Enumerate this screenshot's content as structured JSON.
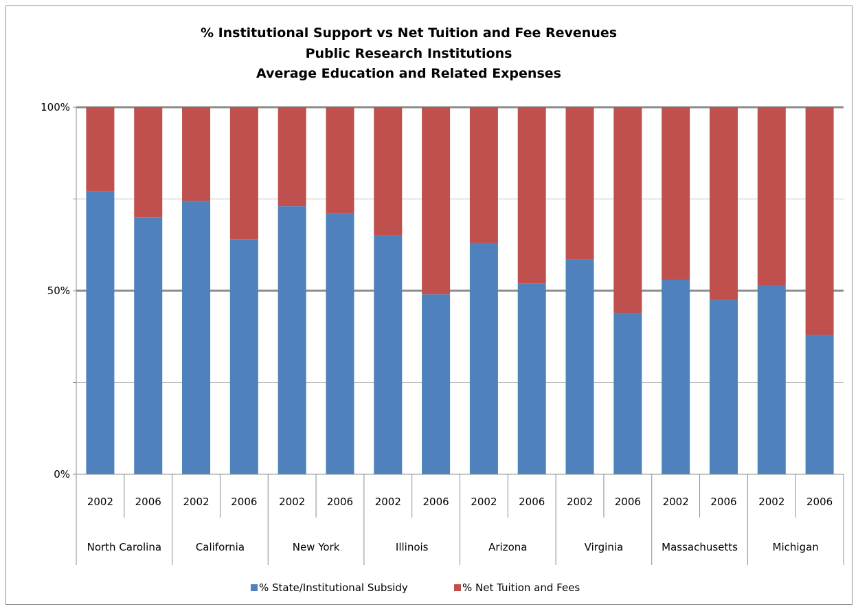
{
  "chart_data": {
    "type": "bar",
    "stacked": true,
    "percent_stacked": true,
    "title": [
      "% Institutional  Support vs Net Tuition and Fee Revenues",
      "Public Research Institutions",
      "Average Education and Related Expenses"
    ],
    "groups": [
      "North Carolina",
      "California",
      "New York",
      "Illinois",
      "Arizona",
      "Virginia",
      "Massachusetts",
      "Michigan"
    ],
    "categories": [
      "2002",
      "2006",
      "2002",
      "2006",
      "2002",
      "2006",
      "2002",
      "2006",
      "2002",
      "2006",
      "2002",
      "2006",
      "2002",
      "2006",
      "2002",
      "2006"
    ],
    "series": [
      {
        "name": "% State/Institutional Subsidy",
        "color": "#4f81bd",
        "values": [
          77,
          70,
          74.5,
          64,
          73,
          71,
          65,
          49,
          63,
          52,
          58.5,
          44,
          53,
          47.5,
          51.5,
          38
        ]
      },
      {
        "name": "% Net Tuition and Fees",
        "color": "#c0504d",
        "values": [
          23,
          30,
          25.5,
          36,
          27,
          29,
          35,
          51,
          37,
          48,
          41.5,
          56,
          47,
          52.5,
          48.5,
          62
        ]
      }
    ],
    "y_ticks": [
      "0%",
      "50%",
      "100%"
    ],
    "ylim": [
      0,
      100
    ],
    "grid": true,
    "legend": "bottom"
  }
}
